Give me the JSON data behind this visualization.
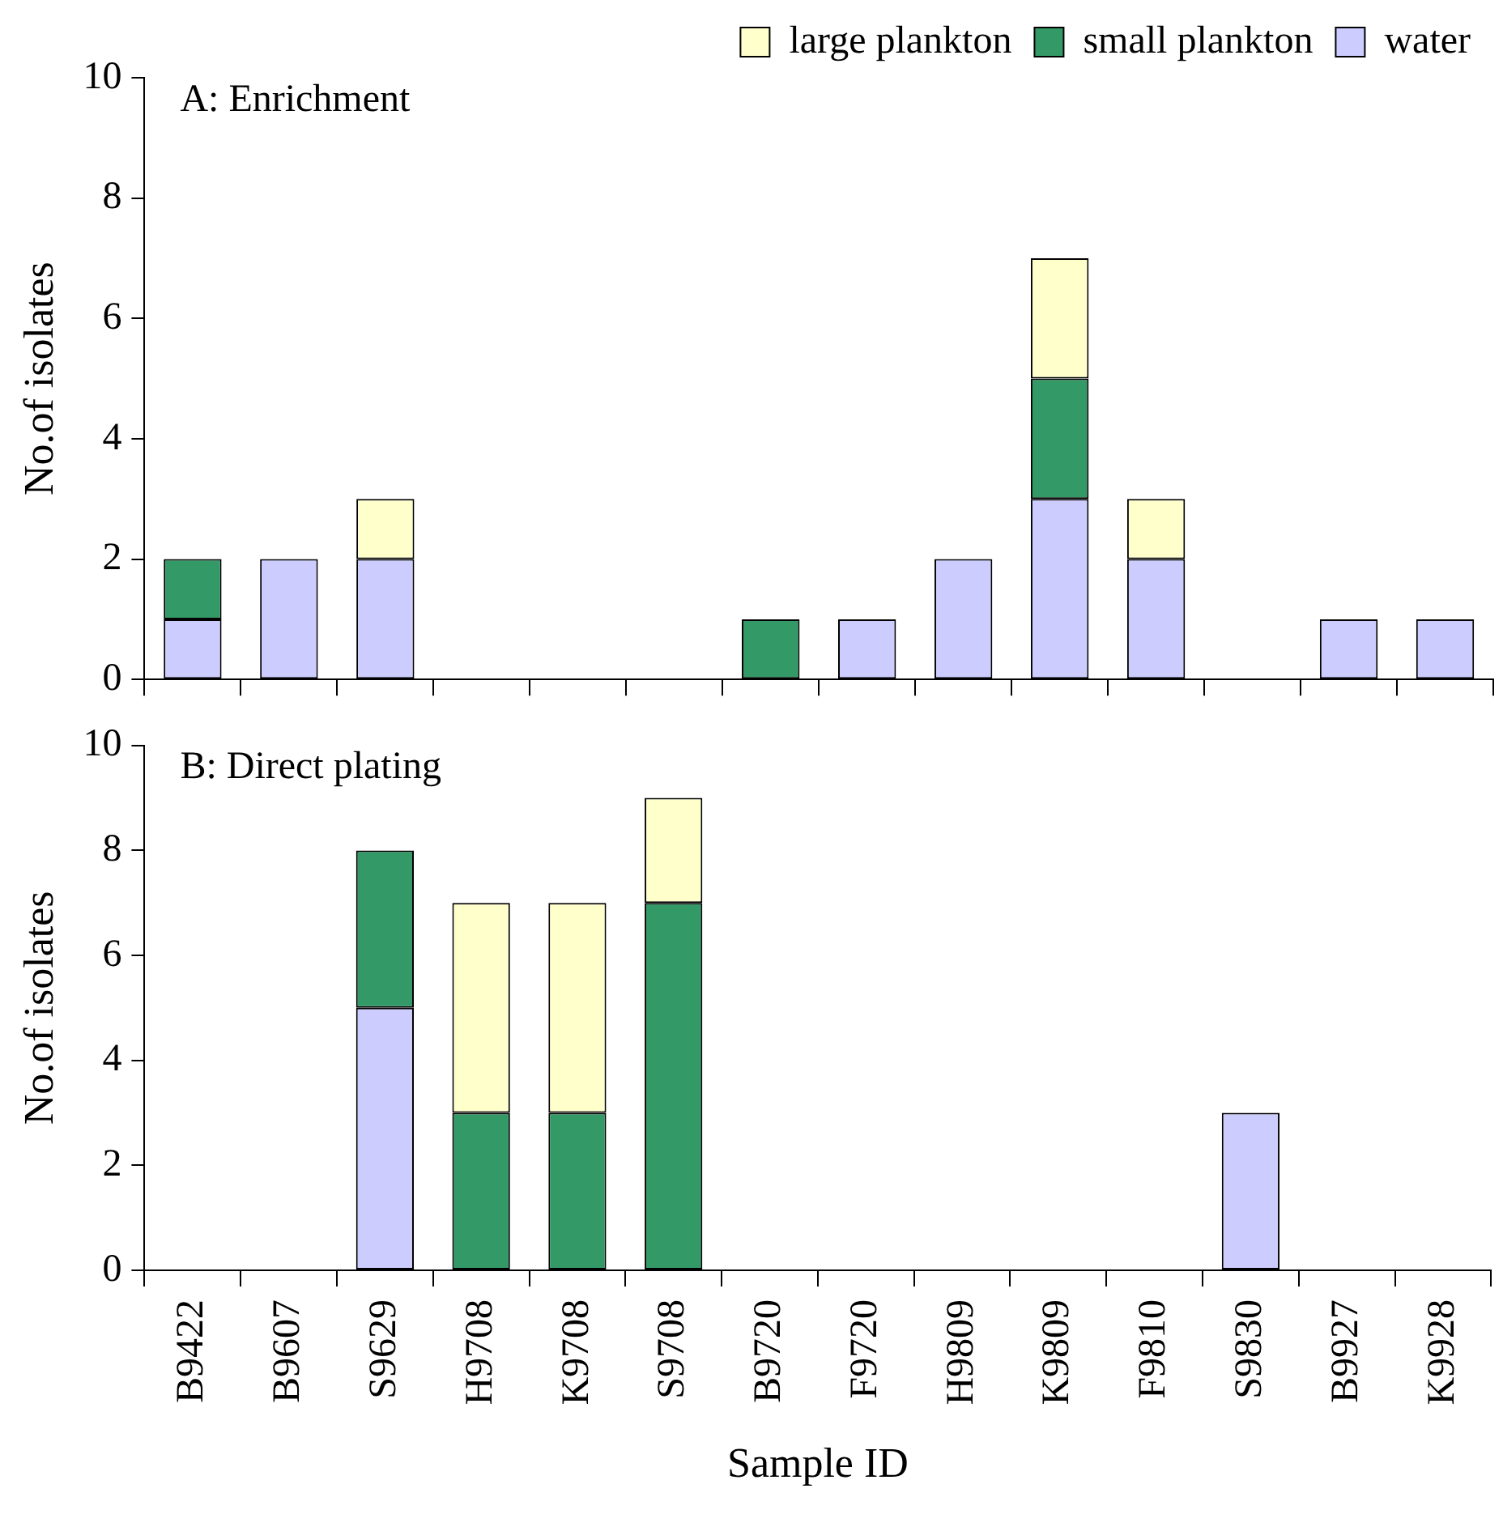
{
  "chart_data": [
    {
      "type": "bar",
      "title": "A: Enrichment",
      "ylabel": "No.of isolates",
      "stacked": true,
      "grid": false,
      "legend": "top right",
      "tick_labels": "y",
      "categories": [
        null,
        null,
        null,
        null,
        null,
        null,
        null,
        null,
        null,
        null,
        null,
        null,
        null,
        null
      ],
      "ylim": [
        0,
        10
      ],
      "yticks": [
        0,
        2,
        4,
        6,
        8,
        10
      ],
      "series": [
        {
          "name": "water",
          "color": "#ccccff",
          "values": [
            1,
            2,
            2,
            0,
            0,
            0,
            0,
            1,
            2,
            3,
            2,
            0,
            1,
            1
          ]
        },
        {
          "name": "small plankton",
          "color": "#339966",
          "values": [
            1,
            0,
            0,
            0,
            0,
            0,
            1,
            0,
            0,
            2,
            0,
            0,
            0,
            0
          ]
        },
        {
          "name": "large plankton",
          "color": "#ffffcc",
          "values": [
            0,
            0,
            1,
            0,
            0,
            0,
            0,
            0,
            0,
            2,
            1,
            0,
            0,
            0
          ]
        }
      ]
    },
    {
      "type": "bar",
      "title": "B: Direct plating",
      "ylabel": "No.of isolates",
      "xlabel": "Sample ID",
      "stacked": true,
      "grid": false,
      "legend": false,
      "categories": [
        "B9422",
        "B9607",
        "S9629",
        "H9708",
        "K9708",
        "S9708",
        "B9720",
        "F9720",
        "H9809",
        "K9809",
        "F9810",
        "S9830",
        "B9927",
        "K9928"
      ],
      "ylim": [
        0,
        10
      ],
      "yticks": [
        0,
        2,
        4,
        6,
        8,
        10
      ],
      "series": [
        {
          "color": "#ccccff",
          "values": [
            0,
            0,
            5,
            0,
            0,
            0,
            0,
            0,
            0,
            0,
            0,
            3,
            0,
            0
          ]
        },
        {
          "color": "#339966",
          "values": [
            0,
            0,
            3,
            3,
            3,
            7,
            0,
            0,
            0,
            0,
            0,
            0,
            0,
            0
          ]
        },
        {
          "color": "#ffffcc",
          "values": [
            0,
            0,
            0,
            4,
            4,
            2,
            0,
            0,
            0,
            0,
            0,
            0,
            0,
            0
          ]
        }
      ]
    }
  ]
}
